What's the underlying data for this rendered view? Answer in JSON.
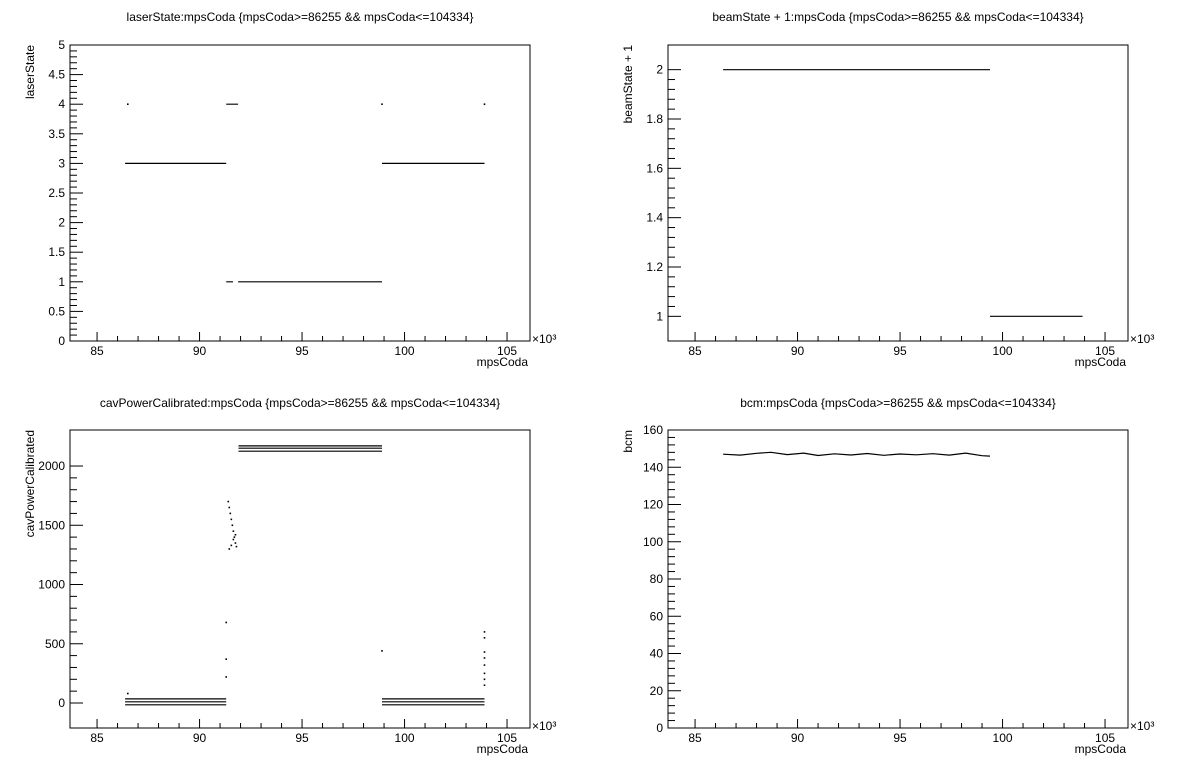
{
  "chart_data": [
    {
      "type": "scatter",
      "title": "laserState:mpsCoda {mpsCoda>=86255 && mpsCoda<=104334}",
      "xlabel": "mpsCoda",
      "ylabel": "laserState",
      "x_multiplier": "×10³",
      "xlim": [
        83.68,
        106.12
      ],
      "xticks": [
        85,
        90,
        95,
        100,
        105
      ],
      "ylim": [
        0,
        5
      ],
      "yticks": [
        0,
        0.5,
        1,
        1.5,
        2,
        2.5,
        3,
        3.5,
        4,
        4.5,
        5
      ],
      "color": "#000000",
      "series": [
        {
          "mode": "line",
          "x": [
            86.37,
            91.3,
            null,
            91.3,
            91.88,
            null,
            91.3,
            91.63,
            null,
            91.88,
            98.9,
            null,
            98.9,
            103.9
          ],
          "values": [
            3,
            3,
            null,
            4,
            4,
            null,
            1,
            1,
            null,
            1,
            1,
            null,
            3,
            3
          ]
        },
        {
          "mode": "markers",
          "x": [
            86.5,
            98.9,
            103.9
          ],
          "values": [
            4,
            4,
            4
          ]
        }
      ]
    },
    {
      "type": "scatter",
      "title": "beamState + 1:mpsCoda {mpsCoda>=86255 && mpsCoda<=104334}",
      "xlabel": "mpsCoda",
      "ylabel": "beamState + 1",
      "x_multiplier": "×10³",
      "xlim": [
        83.68,
        106.12
      ],
      "xticks": [
        85,
        90,
        95,
        100,
        105
      ],
      "ylim": [
        0.9,
        2.1
      ],
      "yticks": [
        1,
        1.2,
        1.4,
        1.6,
        1.8,
        2
      ],
      "color": "#000000",
      "series": [
        {
          "mode": "line",
          "x": [
            86.37,
            99.39,
            null,
            99.39,
            103.9
          ],
          "values": [
            2,
            2,
            null,
            1,
            1
          ]
        }
      ]
    },
    {
      "type": "scatter",
      "title": "cavPowerCalibrated:mpsCoda {mpsCoda>=86255 && mpsCoda<=104334}",
      "xlabel": "mpsCoda",
      "ylabel": "cavPowerCalibrated",
      "x_multiplier": "×10³",
      "xlim": [
        83.68,
        106.12
      ],
      "xticks": [
        85,
        90,
        95,
        100,
        105
      ],
      "ylim": [
        -211,
        2304
      ],
      "yticks": [
        0,
        500,
        1000,
        1500,
        2000
      ],
      "color": "#000000",
      "series": [
        {
          "mode": "line",
          "x": [
            86.37,
            91.3,
            null,
            86.37,
            91.3,
            null,
            86.37,
            91.3,
            null,
            98.9,
            103.9,
            null,
            98.9,
            103.9,
            null,
            98.9,
            103.9
          ],
          "values": [
            35,
            35,
            null,
            10,
            10,
            null,
            -15,
            -15,
            null,
            35,
            35,
            null,
            10,
            10,
            null,
            -15,
            -15
          ]
        },
        {
          "mode": "line",
          "x": [
            91.9,
            98.9,
            null,
            91.9,
            98.9,
            null,
            91.9,
            98.9
          ],
          "values": [
            2170,
            2170,
            null,
            2150,
            2150,
            null,
            2125,
            2125
          ]
        },
        {
          "mode": "markers",
          "x": [
            86.5,
            91.3,
            91.3,
            91.3,
            91.4,
            91.45,
            91.5,
            91.55,
            91.6,
            91.65,
            91.7,
            91.75,
            91.8,
            91.45,
            91.55,
            91.65,
            91.75,
            98.9,
            103.9,
            103.9,
            103.9,
            103.9,
            103.9,
            103.9,
            103.9,
            103.9
          ],
          "values": [
            80,
            680,
            370,
            220,
            1700,
            1650,
            1600,
            1550,
            1500,
            1450,
            1400,
            1350,
            1320,
            1300,
            1330,
            1380,
            1420,
            440,
            600,
            550,
            430,
            380,
            320,
            250,
            200,
            150
          ]
        }
      ]
    },
    {
      "type": "scatter",
      "title": "bcm:mpsCoda {mpsCoda>=86255 && mpsCoda<=104334}",
      "xlabel": "mpsCoda",
      "ylabel": "bcm",
      "x_multiplier": "×10³",
      "xlim": [
        83.68,
        106.12
      ],
      "xticks": [
        85,
        90,
        95,
        100,
        105
      ],
      "ylim": [
        0,
        160
      ],
      "yticks": [
        0,
        20,
        40,
        60,
        80,
        100,
        120,
        140,
        160
      ],
      "color": "#000000",
      "series": [
        {
          "mode": "line",
          "x": [
            86.37,
            87.2,
            88.0,
            88.7,
            89.5,
            90.3,
            91.0,
            91.8,
            92.6,
            93.4,
            94.2,
            95.0,
            95.8,
            96.6,
            97.4,
            98.2,
            99.0,
            99.39
          ],
          "values": [
            147,
            146.5,
            147.5,
            148,
            146.8,
            147.6,
            146.3,
            147.2,
            146.6,
            147.4,
            146.4,
            147.1,
            146.7,
            147.3,
            146.5,
            147.6,
            146.2,
            146
          ]
        }
      ]
    }
  ]
}
